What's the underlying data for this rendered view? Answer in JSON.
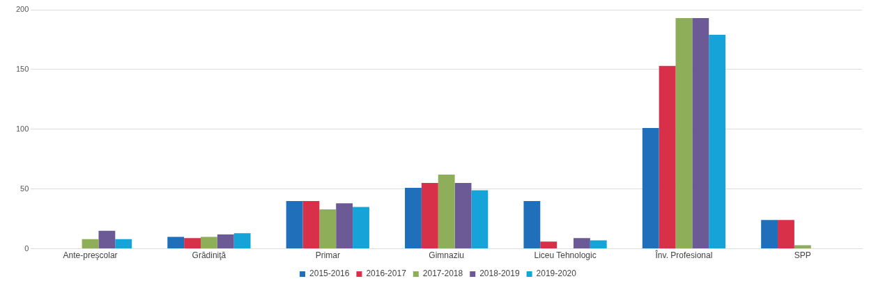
{
  "chart_data": {
    "type": "bar",
    "categories": [
      "Ante-preşcolar",
      "Grădiniţă",
      "Primar",
      "Gimnaziu",
      "Liceu Tehnologic",
      "Înv. Profesional",
      "SPP"
    ],
    "series": [
      {
        "name": "2015-2016",
        "color": "#1f6fba",
        "values": [
          null,
          10,
          40,
          51,
          40,
          101,
          24
        ]
      },
      {
        "name": "2016-2017",
        "color": "#d9304a",
        "values": [
          null,
          9,
          40,
          55,
          6,
          153,
          24
        ]
      },
      {
        "name": "2017-2018",
        "color": "#8fae5a",
        "values": [
          8,
          10,
          33,
          62,
          null,
          193,
          3
        ]
      },
      {
        "name": "2018-2019",
        "color": "#6b5a95",
        "values": [
          15,
          12,
          38,
          55,
          9,
          193,
          null
        ]
      },
      {
        "name": "2019-2020",
        "color": "#15a3d8",
        "values": [
          8,
          13,
          35,
          49,
          7,
          179,
          null
        ]
      }
    ],
    "ylim": [
      0,
      200
    ],
    "yticks": [
      0,
      50,
      100,
      150,
      200
    ],
    "grid": "y",
    "legend": "bottom"
  }
}
